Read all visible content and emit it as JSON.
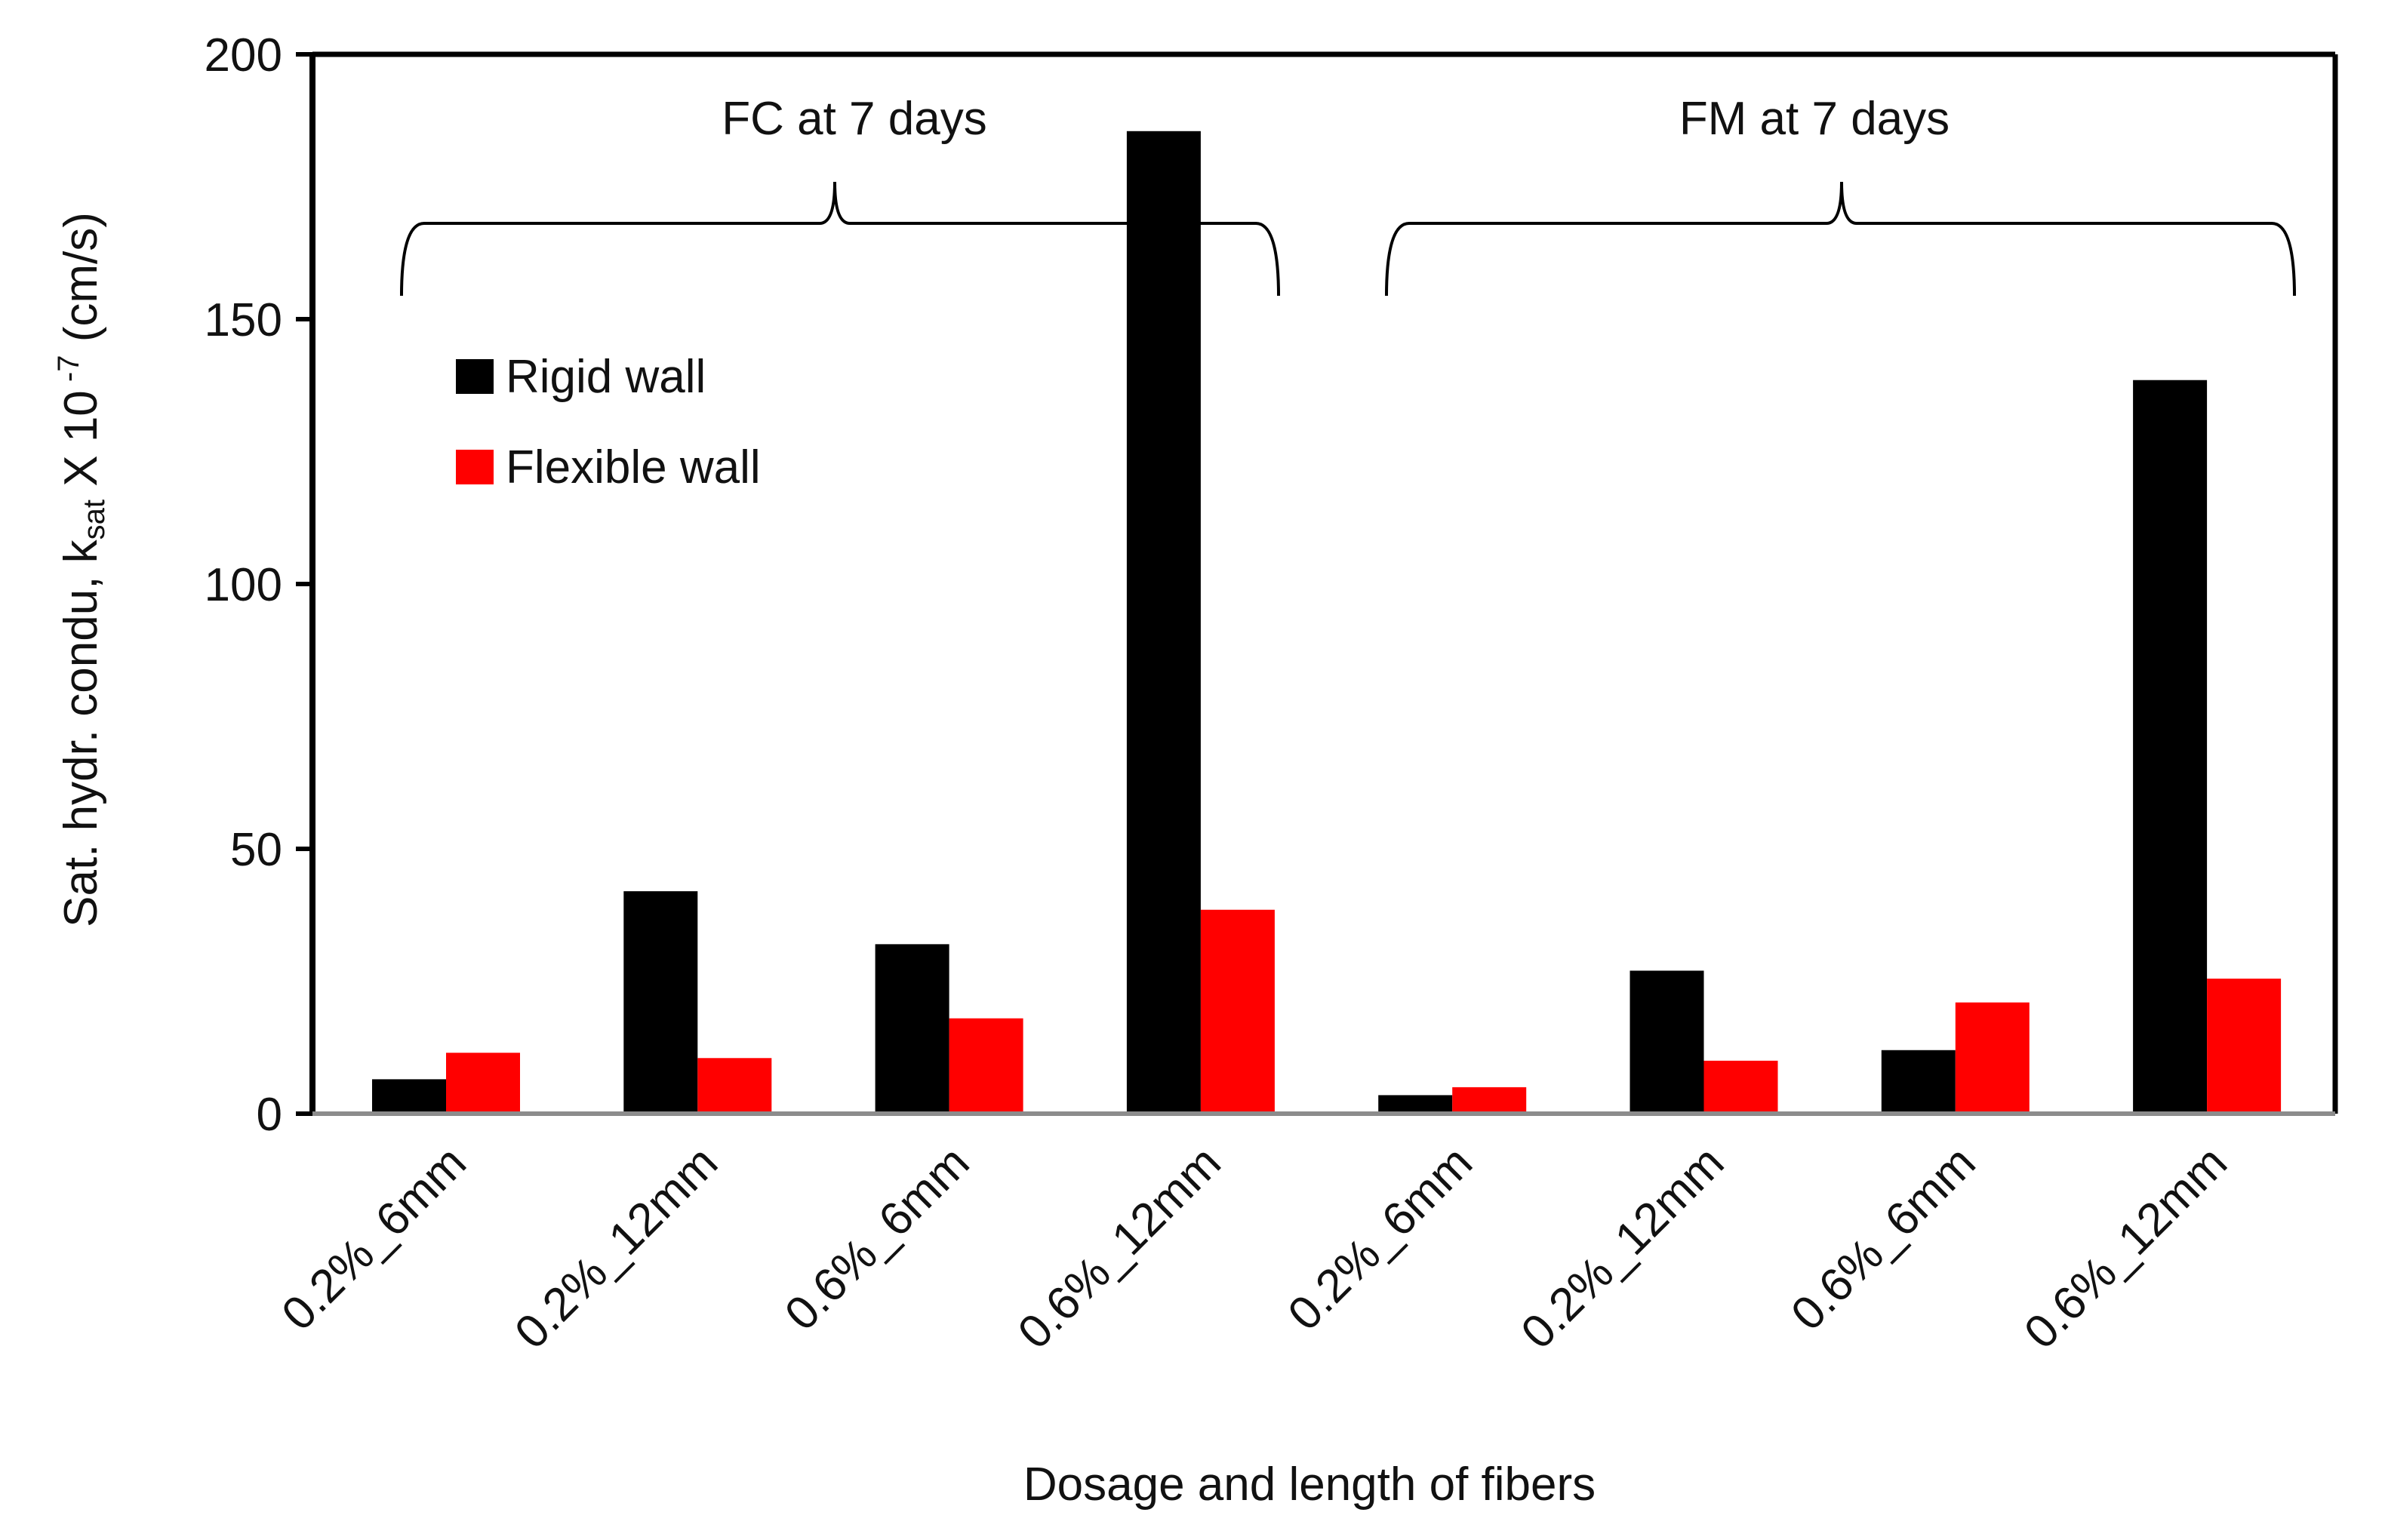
{
  "chart_data": {
    "type": "bar",
    "title": "",
    "xlabel": "Dosage and length of fibers",
    "ylabel": {
      "prefix": "Sat. hydr. condu, k",
      "subscript": "sat",
      "middle": " X 10",
      "superscript": " -7",
      "suffix": "  (cm/s)"
    },
    "ylim": [
      0,
      200
    ],
    "yticks": [
      0,
      50,
      100,
      150,
      200
    ],
    "categories": [
      "0.2%_6mm",
      "0.2%_12mm",
      "0.6%_6mm",
      "0.6%_12mm",
      "0.2%_6mm",
      "0.2%_12mm",
      "0.6%_6mm",
      "0.6%_12mm"
    ],
    "groups": [
      {
        "label": "FC at 7 days",
        "from": 0,
        "to": 3
      },
      {
        "label": "FM at 7 days",
        "from": 4,
        "to": 7
      }
    ],
    "series": [
      {
        "name": "Rigid wall",
        "color": "#000000",
        "values": [
          6.5,
          42,
          32,
          185.5,
          3.5,
          27,
          12,
          138.5
        ]
      },
      {
        "name": "Flexible wall",
        "color": "#ff0000",
        "values": [
          11.5,
          10.5,
          18,
          38.5,
          5,
          10,
          21,
          25.5
        ]
      }
    ],
    "legend_position": "top-left",
    "grid": false
  }
}
